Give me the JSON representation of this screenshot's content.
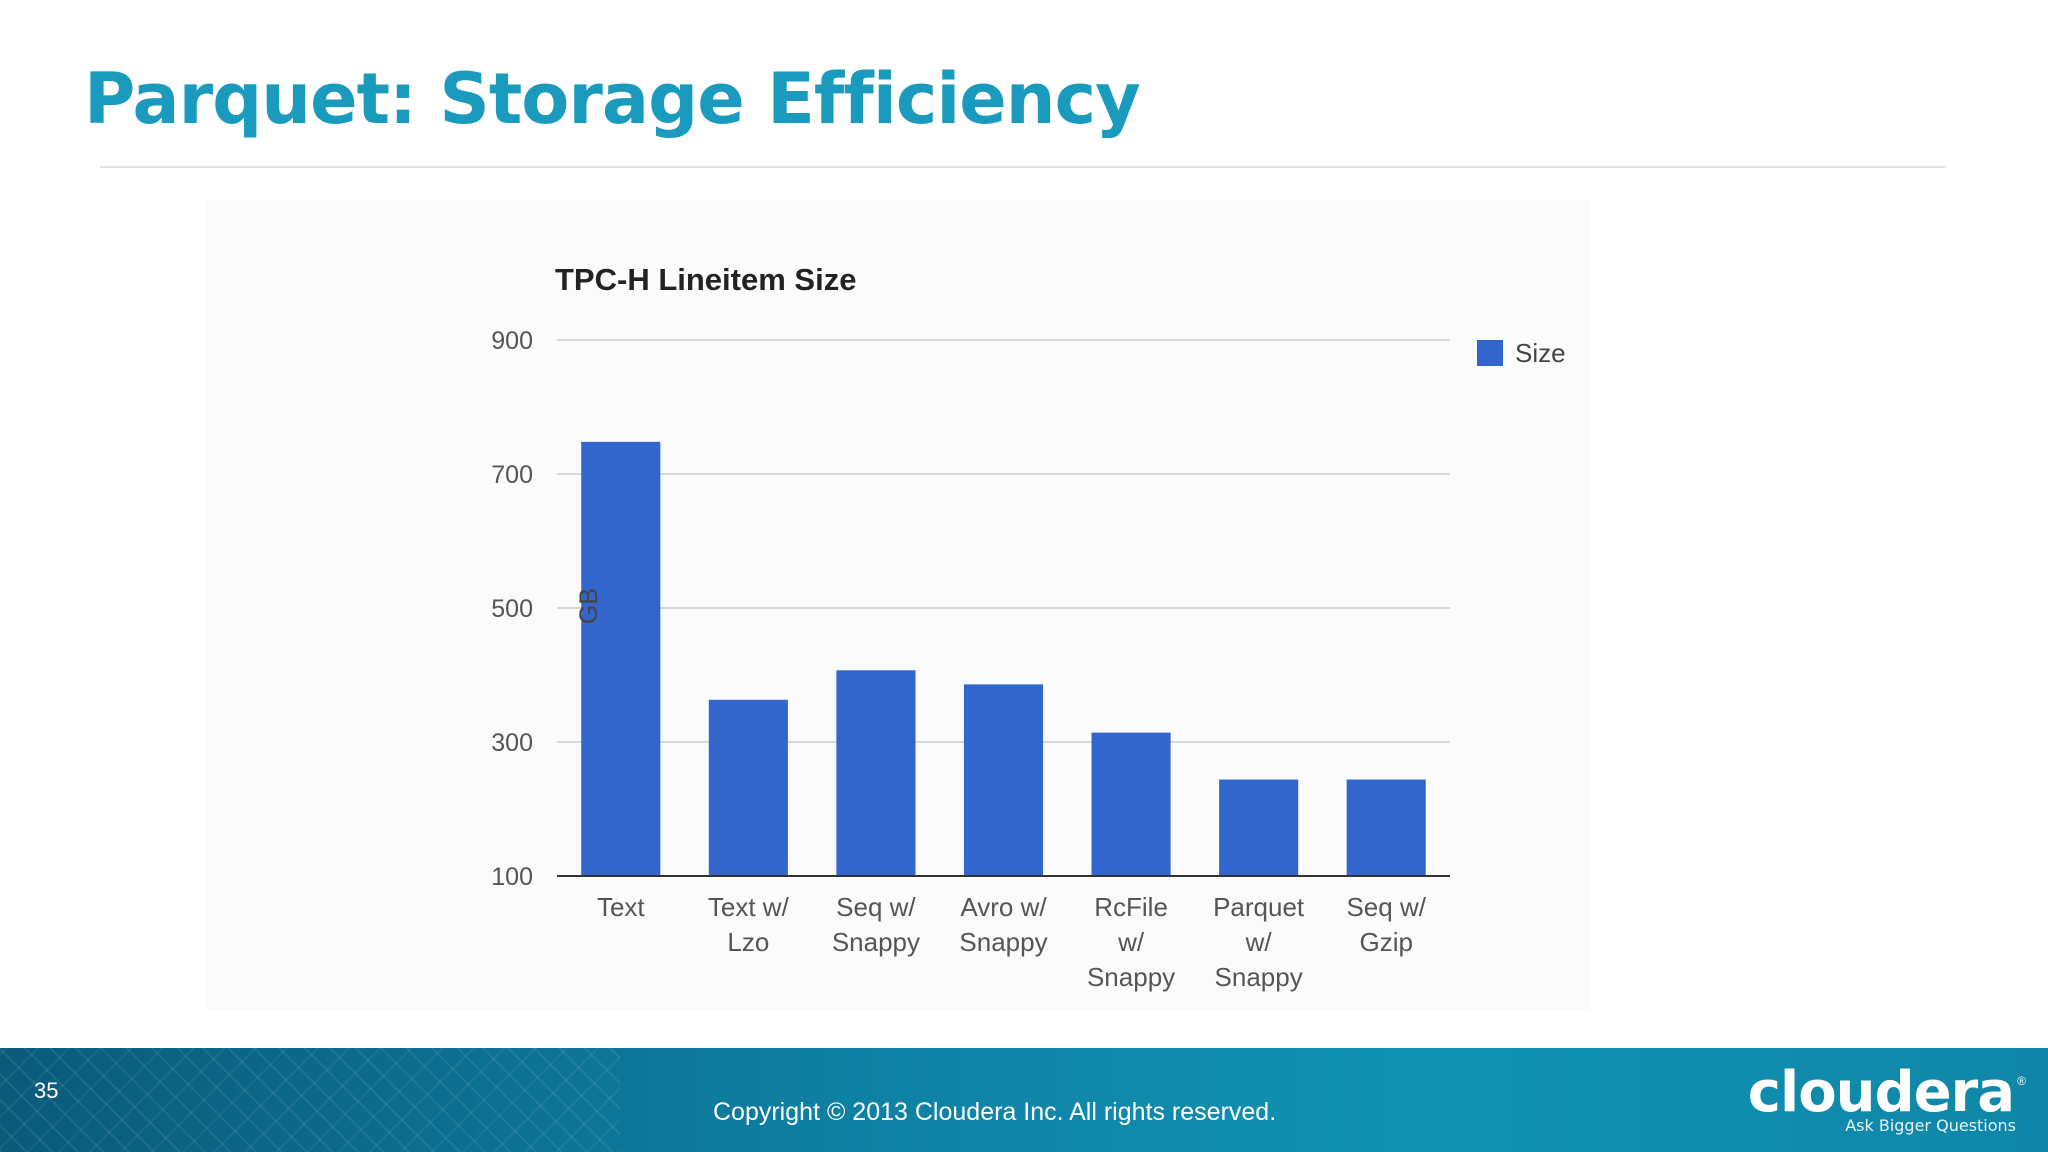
{
  "slide": {
    "title": "Parquet: Storage Efficiency",
    "page_number": "35",
    "copyright": "Copyright © 2013 Cloudera Inc. All rights reserved.",
    "brand": "cloudera",
    "brand_mark": "®",
    "tagline": "Ask Bigger Questions",
    "title_color": "#1a9bbe",
    "footer_color": "#0e7fa2"
  },
  "chart_data": {
    "type": "bar",
    "title": "TPC-H Lineitem Size",
    "xlabel": "",
    "ylabel": "GB",
    "ylim": [
      100,
      900
    ],
    "yticks": [
      100,
      300,
      500,
      700,
      900
    ],
    "grid": true,
    "legend_position": "right",
    "categories": [
      [
        "Text"
      ],
      [
        "Text w/",
        "Lzo"
      ],
      [
        "Seq w/",
        "Snappy"
      ],
      [
        "Avro w/",
        "Snappy"
      ],
      [
        "RcFile",
        "w/",
        "Snappy"
      ],
      [
        "Parquet",
        "w/",
        "Snappy"
      ],
      [
        "Seq w/",
        "Gzip"
      ]
    ],
    "series": [
      {
        "name": "Size",
        "color": "#3366cc",
        "values": [
          748,
          363,
          407,
          386,
          314,
          244,
          244
        ]
      }
    ]
  }
}
